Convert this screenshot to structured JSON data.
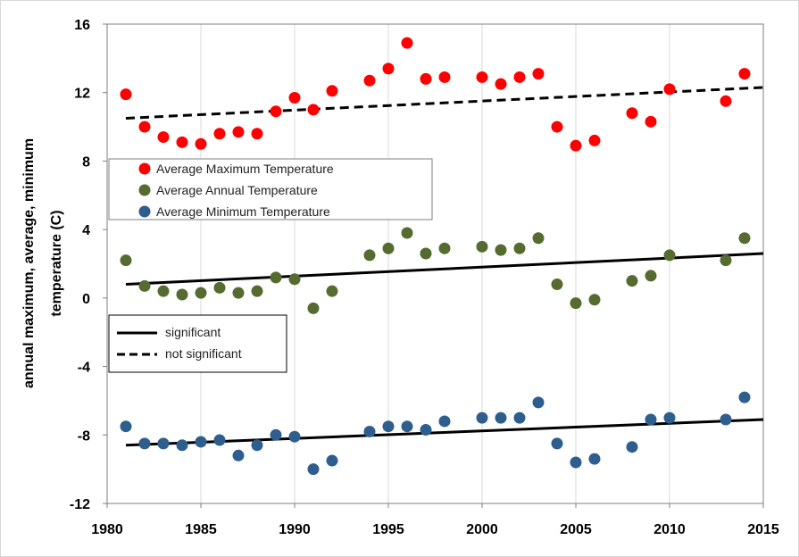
{
  "chart_data": {
    "type": "scatter",
    "ylabel_line1": "annual maximum, average, minimum",
    "ylabel_line2": "temperature (C)",
    "xlim": [
      1980,
      2015
    ],
    "ylim": [
      -12,
      16
    ],
    "x_ticks": [
      1980,
      1985,
      1990,
      1995,
      2000,
      2005,
      2010,
      2015
    ],
    "y_ticks": [
      -12,
      -8,
      -4,
      0,
      4,
      8,
      12,
      16
    ],
    "grid": "vertical",
    "series": [
      {
        "name": "Average Maximum Temperature",
        "color": "#ff0000",
        "x": [
          1981,
          1982,
          1983,
          1984,
          1985,
          1986,
          1987,
          1988,
          1989,
          1990,
          1991,
          1992,
          1994,
          1995,
          1996,
          1997,
          1998,
          2000,
          2001,
          2002,
          2003,
          2004,
          2005,
          2006,
          2008,
          2009,
          2010,
          2013,
          2014
        ],
        "values": [
          11.9,
          10.0,
          9.4,
          9.1,
          9.0,
          9.6,
          9.7,
          9.6,
          10.9,
          11.7,
          11.0,
          12.1,
          12.7,
          13.4,
          14.9,
          12.8,
          12.9,
          12.9,
          12.5,
          12.9,
          13.1,
          10.0,
          8.9,
          9.2,
          10.8,
          10.3,
          12.2,
          11.5,
          13.1
        ]
      },
      {
        "name": "Average Annual Temperature",
        "color": "#556b2f",
        "x": [
          1981,
          1982,
          1983,
          1984,
          1985,
          1986,
          1987,
          1988,
          1989,
          1990,
          1991,
          1992,
          1994,
          1995,
          1996,
          1997,
          1998,
          2000,
          2001,
          2002,
          2003,
          2004,
          2005,
          2006,
          2008,
          2009,
          2010,
          2013,
          2014
        ],
        "values": [
          2.2,
          0.7,
          0.4,
          0.2,
          0.3,
          0.6,
          0.3,
          0.4,
          1.2,
          1.1,
          -0.6,
          0.4,
          2.5,
          2.9,
          3.8,
          2.6,
          2.9,
          3.0,
          2.8,
          2.9,
          3.5,
          0.8,
          -0.3,
          -0.1,
          1.0,
          1.3,
          2.5,
          2.2,
          3.5
        ]
      },
      {
        "name": "Average Minimum Temperature",
        "color": "#2e5e8e",
        "x": [
          1981,
          1982,
          1983,
          1984,
          1985,
          1986,
          1987,
          1988,
          1989,
          1990,
          1991,
          1992,
          1994,
          1995,
          1996,
          1997,
          1998,
          2000,
          2001,
          2002,
          2003,
          2004,
          2005,
          2006,
          2008,
          2009,
          2010,
          2013,
          2014
        ],
        "values": [
          -7.5,
          -8.5,
          -8.5,
          -8.6,
          -8.4,
          -8.3,
          -9.2,
          -8.6,
          -8.0,
          -8.1,
          -10.0,
          -9.5,
          -7.8,
          -7.5,
          -7.5,
          -7.7,
          -7.2,
          -7.0,
          -7.0,
          -7.0,
          -6.1,
          -8.5,
          -9.6,
          -9.4,
          -8.7,
          -7.1,
          -7.0,
          -7.1,
          -5.8
        ]
      }
    ],
    "trend_lines": [
      {
        "name": "max-trend",
        "style": "dashed",
        "x": [
          1981,
          2015
        ],
        "y": [
          10.5,
          12.3
        ]
      },
      {
        "name": "avg-trend",
        "style": "solid",
        "x": [
          1981,
          2015
        ],
        "y": [
          0.8,
          2.6
        ]
      },
      {
        "name": "min-trend",
        "style": "solid",
        "x": [
          1981,
          2015
        ],
        "y": [
          -8.6,
          -7.1
        ]
      }
    ],
    "series_legend": [
      {
        "label": "Average Maximum Temperature",
        "color": "#ff0000"
      },
      {
        "label": "Average Annual Temperature",
        "color": "#556b2f"
      },
      {
        "label": "Average Minimum Temperature",
        "color": "#2e5e8e"
      }
    ],
    "line_legend": [
      {
        "label": "significant",
        "style": "solid"
      },
      {
        "label": "not significant",
        "style": "dashed"
      }
    ]
  }
}
